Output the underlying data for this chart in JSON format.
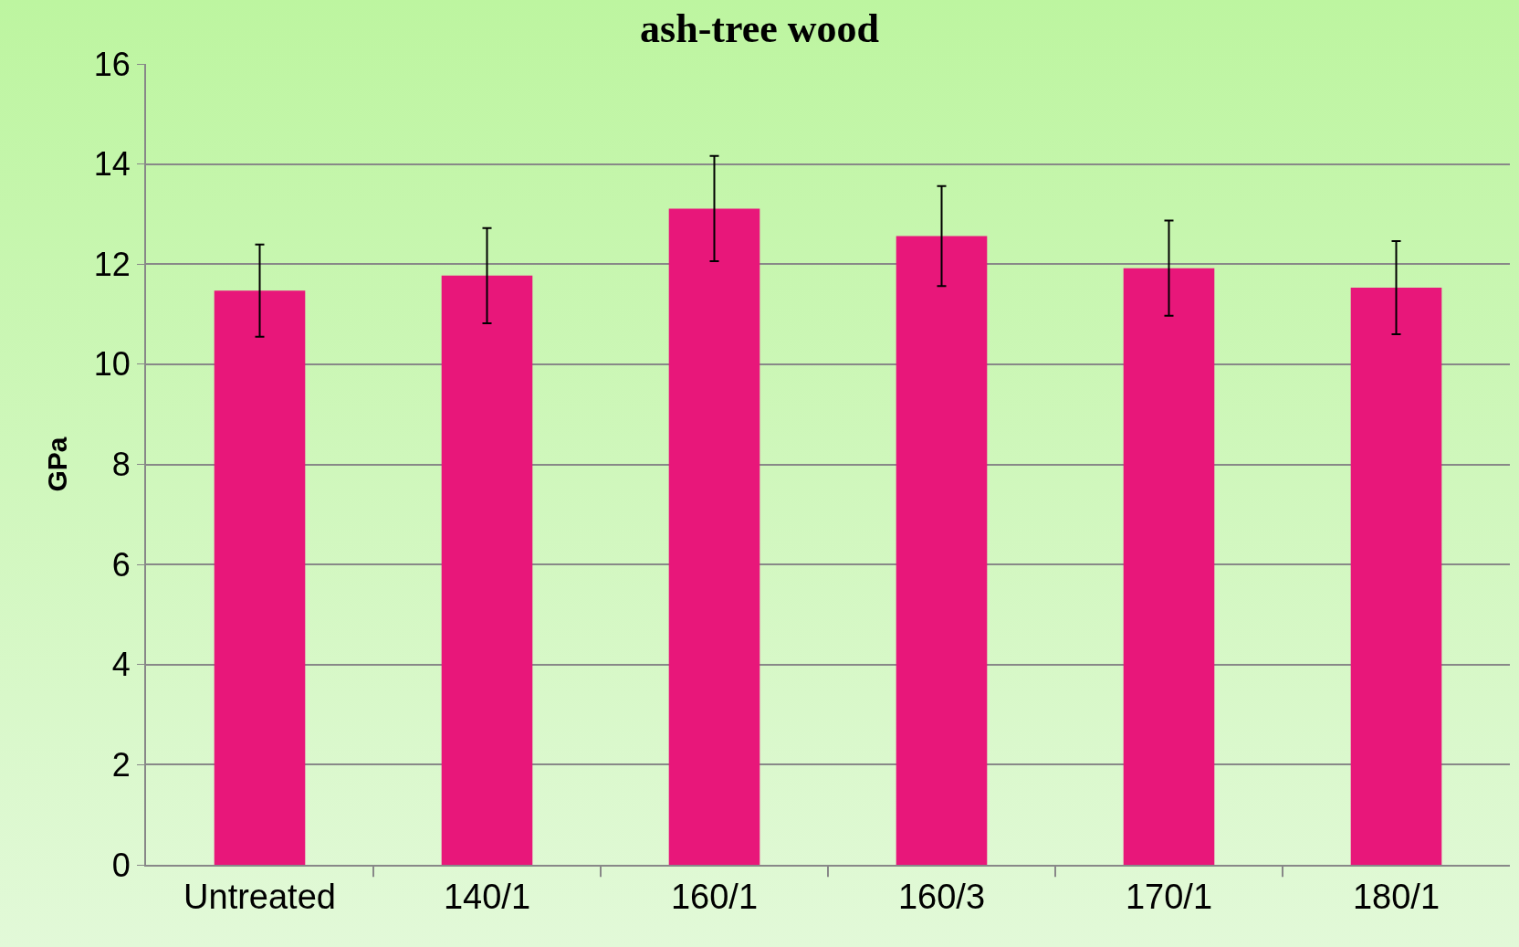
{
  "chart_data": {
    "type": "bar",
    "title": "ash-tree wood",
    "ylabel": "GPa",
    "categories": [
      "Untreated",
      "140/1",
      "160/1",
      "160/3",
      "170/1",
      "180/1"
    ],
    "values": [
      11.47,
      11.77,
      13.11,
      12.56,
      11.92,
      11.53
    ],
    "errors": [
      0.92,
      0.95,
      1.05,
      1.0,
      0.95,
      0.93
    ],
    "color": "#e8177a",
    "ylim": [
      0,
      16
    ],
    "yticks": [
      0,
      2,
      4,
      6,
      8,
      10,
      12,
      14,
      16
    ],
    "grid": "y"
  }
}
